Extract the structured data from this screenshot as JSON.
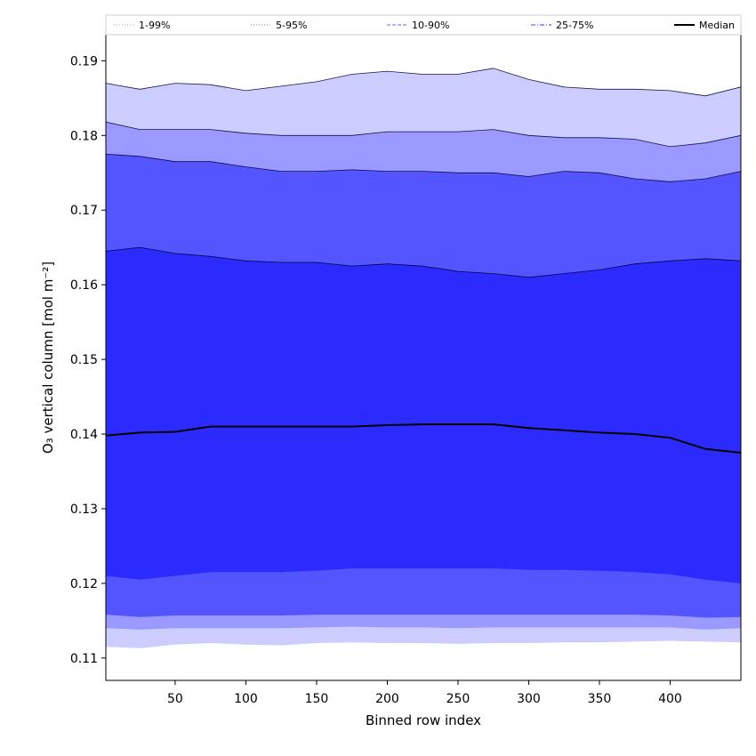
{
  "chart_data": {
    "type": "area",
    "xlabel": "Binned row index",
    "ylabel": "O₃ vertical column [mol m⁻²]",
    "xlim": [
      1,
      450
    ],
    "ylim": [
      0.107,
      0.1935
    ],
    "xticks": [
      50,
      100,
      150,
      200,
      250,
      300,
      350,
      400
    ],
    "yticks": [
      0.11,
      0.12,
      0.13,
      0.14,
      0.15,
      0.16,
      0.17,
      0.18,
      0.19
    ],
    "ytick_labels": [
      "0.11",
      "0.12",
      "0.13",
      "0.14",
      "0.15",
      "0.16",
      "0.17",
      "0.18",
      "0.19"
    ],
    "grid": false,
    "legend_placement": "top, above plot",
    "x": [
      1,
      25,
      50,
      75,
      100,
      125,
      150,
      175,
      200,
      225,
      250,
      275,
      300,
      325,
      350,
      375,
      400,
      425,
      450
    ],
    "series": [
      {
        "name": "1-99%",
        "color": "#ccccff",
        "line_color": "#9999ff",
        "line_style": "dotted",
        "lower": [
          0.1115,
          0.1113,
          0.1118,
          0.112,
          0.1118,
          0.1117,
          0.112,
          0.1121,
          0.112,
          0.112,
          0.1119,
          0.112,
          0.112,
          0.1121,
          0.1121,
          0.1122,
          0.1123,
          0.1122,
          0.1121
        ],
        "upper": [
          0.187,
          0.1862,
          0.187,
          0.1868,
          0.186,
          0.1866,
          0.1872,
          0.1882,
          0.1886,
          0.1882,
          0.1882,
          0.189,
          0.1875,
          0.1865,
          0.1862,
          0.1862,
          0.186,
          0.1853,
          0.1865
        ]
      },
      {
        "name": "5-95%",
        "color": "#9999ff",
        "line_color": "#6666ff",
        "line_style": "dotted",
        "lower": [
          0.114,
          0.1138,
          0.114,
          0.114,
          0.114,
          0.114,
          0.1141,
          0.1142,
          0.1141,
          0.1141,
          0.114,
          0.1141,
          0.1141,
          0.1141,
          0.1141,
          0.1141,
          0.1141,
          0.1138,
          0.114
        ],
        "upper": [
          0.1818,
          0.1808,
          0.1808,
          0.1808,
          0.1803,
          0.18,
          0.18,
          0.18,
          0.1805,
          0.1805,
          0.1805,
          0.1808,
          0.18,
          0.1797,
          0.1797,
          0.1795,
          0.1785,
          0.179,
          0.18
        ]
      },
      {
        "name": "10-90%",
        "color": "#5555ff",
        "line_color": "#6666ff",
        "line_style": "dashed",
        "lower": [
          0.1158,
          0.1155,
          0.1157,
          0.1157,
          0.1157,
          0.1157,
          0.1158,
          0.1158,
          0.1158,
          0.1158,
          0.1158,
          0.1158,
          0.1158,
          0.1158,
          0.1158,
          0.1158,
          0.1157,
          0.1154,
          0.1155
        ],
        "upper": [
          0.1775,
          0.1772,
          0.1765,
          0.1765,
          0.1758,
          0.1752,
          0.1752,
          0.1754,
          0.1752,
          0.1752,
          0.175,
          0.175,
          0.1745,
          0.1752,
          0.175,
          0.1742,
          0.1738,
          0.1742,
          0.1752
        ]
      },
      {
        "name": "25-75%",
        "color": "#2b2bff",
        "line_color": "#3333ff",
        "line_style": "dashdot",
        "lower": [
          0.121,
          0.1205,
          0.121,
          0.1215,
          0.1215,
          0.1215,
          0.1217,
          0.122,
          0.122,
          0.122,
          0.122,
          0.122,
          0.1218,
          0.1218,
          0.1217,
          0.1215,
          0.1212,
          0.1205,
          0.12
        ],
        "upper": [
          0.1645,
          0.165,
          0.1642,
          0.1638,
          0.1632,
          0.163,
          0.163,
          0.1625,
          0.1628,
          0.1625,
          0.1618,
          0.1615,
          0.161,
          0.1615,
          0.162,
          0.1628,
          0.1632,
          0.1635,
          0.1632
        ]
      }
    ],
    "median": {
      "name": "Median",
      "color": "#000000",
      "values": [
        0.1398,
        0.1402,
        0.1403,
        0.141,
        0.141,
        0.141,
        0.141,
        0.141,
        0.1412,
        0.1413,
        0.1413,
        0.1413,
        0.1408,
        0.1405,
        0.1402,
        0.14,
        0.1395,
        0.138,
        0.1375
      ]
    }
  }
}
